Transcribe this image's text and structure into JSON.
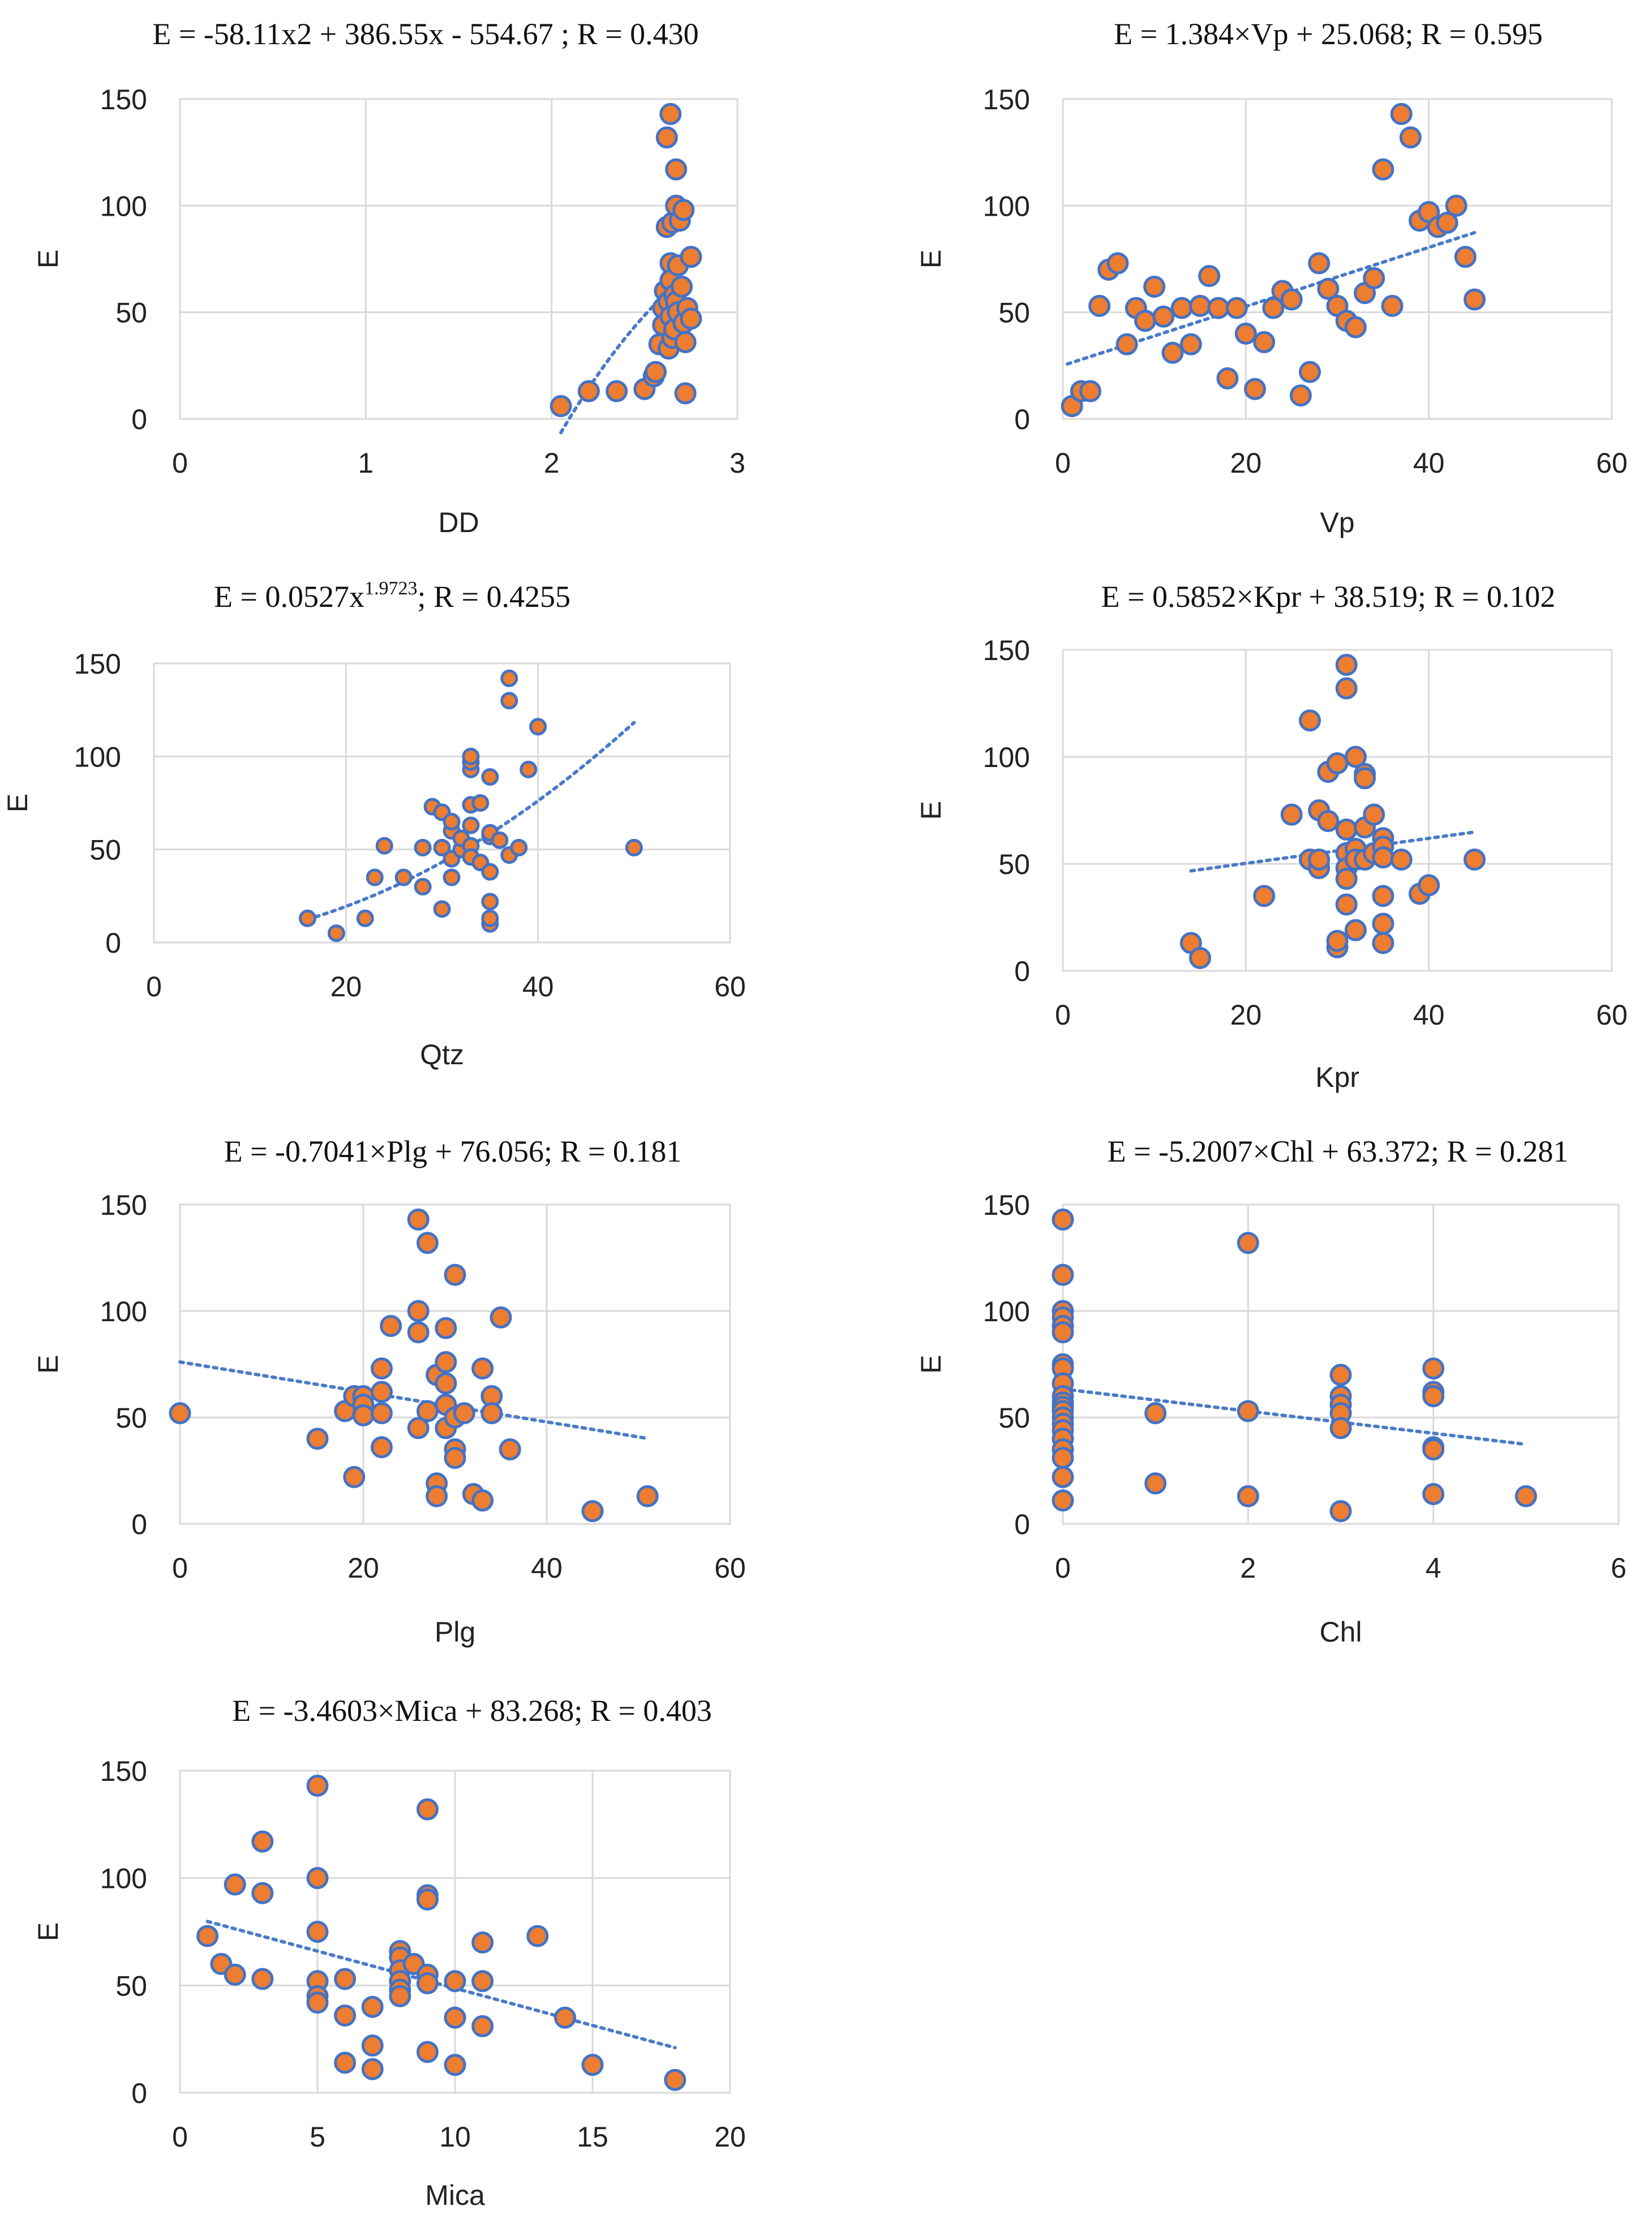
{
  "colors": {
    "marker_fill": "#ed7d31",
    "marker_edge": "#4472c4",
    "trendline": "#4472c4",
    "gridline": "#d9d9d9"
  },
  "chart_data": [
    {
      "type": "scatter",
      "id": "dd",
      "title": "E = -58.11x2 + 386.55x - 554.67 ; R = 0.430",
      "xlabel": "DD",
      "ylabel": "E",
      "xlim": [
        0,
        3
      ],
      "ylim": [
        0,
        150
      ],
      "xticks": [
        "0",
        "1",
        "2",
        "3"
      ],
      "xtick_values": [
        0,
        1,
        2,
        3
      ],
      "yticks": [
        "0",
        "50",
        "100",
        "150"
      ],
      "ytick_values": [
        0,
        50,
        100,
        150
      ],
      "trendline": {
        "kind": "poly2",
        "a": -58.11,
        "b": 386.55,
        "c": -554.67,
        "x_from": 2.05,
        "x_to": 2.72
      },
      "points": [
        [
          2.05,
          6
        ],
        [
          2.2,
          13
        ],
        [
          2.35,
          13
        ],
        [
          2.5,
          14
        ],
        [
          2.55,
          20
        ],
        [
          2.56,
          22
        ],
        [
          2.58,
          35
        ],
        [
          2.6,
          52
        ],
        [
          2.6,
          44
        ],
        [
          2.61,
          60
        ],
        [
          2.62,
          132
        ],
        [
          2.62,
          90
        ],
        [
          2.63,
          55
        ],
        [
          2.63,
          33
        ],
        [
          2.64,
          143
        ],
        [
          2.64,
          73
        ],
        [
          2.64,
          65
        ],
        [
          2.64,
          48
        ],
        [
          2.65,
          38
        ],
        [
          2.65,
          92
        ],
        [
          2.66,
          58
        ],
        [
          2.66,
          42
        ],
        [
          2.67,
          100
        ],
        [
          2.67,
          117
        ],
        [
          2.67,
          55
        ],
        [
          2.68,
          50
        ],
        [
          2.68,
          72
        ],
        [
          2.69,
          93
        ],
        [
          2.7,
          62
        ],
        [
          2.71,
          98
        ],
        [
          2.71,
          45
        ],
        [
          2.72,
          36
        ],
        [
          2.72,
          12
        ],
        [
          2.73,
          52
        ],
        [
          2.75,
          76
        ],
        [
          2.75,
          47
        ]
      ]
    },
    {
      "type": "scatter",
      "id": "vp",
      "title": "E = 1.384×Vp + 25.068; R = 0.595",
      "xlabel": "Vp",
      "ylabel": "E",
      "xlim": [
        0,
        60
      ],
      "ylim": [
        0,
        150
      ],
      "xticks": [
        "0",
        "20",
        "40",
        "60"
      ],
      "xtick_values": [
        0,
        20,
        40,
        60
      ],
      "yticks": [
        "0",
        "50",
        "100",
        "150"
      ],
      "ytick_values": [
        0,
        50,
        100,
        150
      ],
      "trendline": {
        "kind": "linear",
        "slope": 1.384,
        "intercept": 25.068,
        "x_from": 0.5,
        "x_to": 45
      },
      "points": [
        [
          1,
          6
        ],
        [
          2,
          13
        ],
        [
          3,
          13
        ],
        [
          4,
          53
        ],
        [
          5,
          70
        ],
        [
          6,
          73
        ],
        [
          7,
          35
        ],
        [
          8,
          52
        ],
        [
          9,
          46
        ],
        [
          10,
          62
        ],
        [
          11,
          48
        ],
        [
          12,
          31
        ],
        [
          13,
          52
        ],
        [
          14,
          35
        ],
        [
          15,
          53
        ],
        [
          16,
          67
        ],
        [
          17,
          52
        ],
        [
          18,
          19
        ],
        [
          19,
          52
        ],
        [
          20,
          40
        ],
        [
          21,
          14
        ],
        [
          22,
          36
        ],
        [
          23,
          52
        ],
        [
          24,
          60
        ],
        [
          25,
          56
        ],
        [
          26,
          11
        ],
        [
          27,
          22
        ],
        [
          28,
          73
        ],
        [
          29,
          61
        ],
        [
          30,
          53
        ],
        [
          31,
          46
        ],
        [
          32,
          43
        ],
        [
          33,
          59
        ],
        [
          34,
          66
        ],
        [
          35,
          117
        ],
        [
          36,
          53
        ],
        [
          37,
          143
        ],
        [
          38,
          132
        ],
        [
          39,
          93
        ],
        [
          40,
          97
        ],
        [
          41,
          90
        ],
        [
          42,
          92
        ],
        [
          43,
          100
        ],
        [
          44,
          76
        ],
        [
          45,
          56
        ]
      ]
    },
    {
      "type": "scatter",
      "id": "qtz",
      "title_main": "E = 0.0527x",
      "title_sup": "1.9723",
      "title_rest": "; R = 0.4255",
      "xlabel": "Qtz",
      "ylabel": "E",
      "xlim": [
        0,
        60
      ],
      "ylim": [
        0,
        150
      ],
      "xticks": [
        "0",
        "20",
        "40",
        "60"
      ],
      "xtick_values": [
        0,
        20,
        40,
        60
      ],
      "yticks": [
        "0",
        "50",
        "100",
        "150"
      ],
      "ytick_values": [
        0,
        50,
        100,
        150
      ],
      "trendline": {
        "kind": "power",
        "a": 0.0527,
        "b": 1.9723,
        "x_from": 16,
        "x_to": 50
      },
      "points": [
        [
          16,
          13
        ],
        [
          19,
          5
        ],
        [
          22,
          13
        ],
        [
          23,
          35
        ],
        [
          24,
          52
        ],
        [
          26,
          35
        ],
        [
          28,
          30
        ],
        [
          28,
          51
        ],
        [
          29,
          73
        ],
        [
          30,
          18
        ],
        [
          30,
          51
        ],
        [
          30,
          70
        ],
        [
          31,
          35
        ],
        [
          31,
          45
        ],
        [
          31,
          60
        ],
        [
          31,
          65
        ],
        [
          32,
          50
        ],
        [
          32,
          56
        ],
        [
          33,
          52
        ],
        [
          33,
          46
        ],
        [
          33,
          63
        ],
        [
          33,
          74
        ],
        [
          33,
          93
        ],
        [
          33,
          97
        ],
        [
          33,
          100
        ],
        [
          34,
          43
        ],
        [
          34,
          75
        ],
        [
          35,
          10
        ],
        [
          35,
          13
        ],
        [
          35,
          22
        ],
        [
          35,
          38
        ],
        [
          35,
          57
        ],
        [
          35,
          59
        ],
        [
          35,
          89
        ],
        [
          36,
          55
        ],
        [
          37,
          47
        ],
        [
          37,
          130
        ],
        [
          37,
          142
        ],
        [
          38,
          51
        ],
        [
          39,
          93
        ],
        [
          40,
          116
        ],
        [
          50,
          51
        ]
      ]
    },
    {
      "type": "scatter",
      "id": "kpr",
      "title": "E = 0.5852×Kpr + 38.519; R = 0.102",
      "xlabel": "Kpr",
      "ylabel": "E",
      "xlim": [
        0,
        60
      ],
      "ylim": [
        0,
        150
      ],
      "xticks": [
        "0",
        "20",
        "40",
        "60"
      ],
      "xtick_values": [
        0,
        20,
        40,
        60
      ],
      "yticks": [
        "0",
        "50",
        "100",
        "150"
      ],
      "ytick_values": [
        0,
        50,
        100,
        150
      ],
      "trendline": {
        "kind": "linear",
        "slope": 0.5852,
        "intercept": 38.519,
        "x_from": 14,
        "x_to": 45
      },
      "points": [
        [
          14,
          13
        ],
        [
          15,
          6
        ],
        [
          22,
          35
        ],
        [
          25,
          73
        ],
        [
          27,
          117
        ],
        [
          27,
          52
        ],
        [
          28,
          75
        ],
        [
          28,
          48
        ],
        [
          28,
          52
        ],
        [
          29,
          70
        ],
        [
          29,
          93
        ],
        [
          30,
          97
        ],
        [
          30,
          11
        ],
        [
          30,
          14
        ],
        [
          31,
          143
        ],
        [
          31,
          132
        ],
        [
          31,
          66
        ],
        [
          31,
          55
        ],
        [
          31,
          48
        ],
        [
          31,
          43
        ],
        [
          31,
          31
        ],
        [
          32,
          100
        ],
        [
          32,
          57
        ],
        [
          32,
          52
        ],
        [
          32,
          19
        ],
        [
          33,
          92
        ],
        [
          33,
          90
        ],
        [
          33,
          67
        ],
        [
          33,
          52
        ],
        [
          34,
          73
        ],
        [
          34,
          55
        ],
        [
          35,
          62
        ],
        [
          35,
          58
        ],
        [
          35,
          53
        ],
        [
          35,
          35
        ],
        [
          35,
          22
        ],
        [
          35,
          13
        ],
        [
          37,
          52
        ],
        [
          39,
          36
        ],
        [
          40,
          40
        ],
        [
          45,
          52
        ]
      ]
    },
    {
      "type": "scatter",
      "id": "plg",
      "title": "E = -0.7041×Plg + 76.056; R = 0.181",
      "xlabel": "Plg",
      "ylabel": "E",
      "xlim": [
        0,
        60
      ],
      "ylim": [
        0,
        150
      ],
      "xticks": [
        "0",
        "20",
        "40",
        "60"
      ],
      "xtick_values": [
        0,
        20,
        40,
        60
      ],
      "yticks": [
        "0",
        "50",
        "100",
        "150"
      ],
      "ytick_values": [
        0,
        50,
        100,
        150
      ],
      "trendline": {
        "kind": "linear",
        "slope": -0.7041,
        "intercept": 76.056,
        "x_from": 0,
        "x_to": 51
      },
      "points": [
        [
          0,
          52
        ],
        [
          15,
          40
        ],
        [
          18,
          53
        ],
        [
          19,
          60
        ],
        [
          19,
          22
        ],
        [
          20,
          60
        ],
        [
          20,
          56
        ],
        [
          20,
          51
        ],
        [
          22,
          73
        ],
        [
          22,
          62
        ],
        [
          22,
          52
        ],
        [
          22,
          36
        ],
        [
          23,
          93
        ],
        [
          26,
          143
        ],
        [
          26,
          100
        ],
        [
          26,
          90
        ],
        [
          26,
          45
        ],
        [
          27,
          132
        ],
        [
          27,
          53
        ],
        [
          28,
          70
        ],
        [
          28,
          19
        ],
        [
          28,
          13
        ],
        [
          29,
          92
        ],
        [
          29,
          76
        ],
        [
          29,
          66
        ],
        [
          29,
          56
        ],
        [
          29,
          45
        ],
        [
          30,
          117
        ],
        [
          30,
          50
        ],
        [
          30,
          35
        ],
        [
          30,
          31
        ],
        [
          31,
          52
        ],
        [
          32,
          14
        ],
        [
          33,
          73
        ],
        [
          33,
          11
        ],
        [
          34,
          60
        ],
        [
          34,
          52
        ],
        [
          35,
          97
        ],
        [
          36,
          35
        ],
        [
          45,
          6
        ],
        [
          51,
          13
        ]
      ]
    },
    {
      "type": "scatter",
      "id": "chl",
      "title": "E = -5.2007×Chl + 63.372; R = 0.281",
      "xlabel": "Chl",
      "ylabel": "E",
      "xlim": [
        0,
        6
      ],
      "ylim": [
        0,
        150
      ],
      "xticks": [
        "0",
        "2",
        "4",
        "6"
      ],
      "xtick_values": [
        0,
        2,
        4,
        6
      ],
      "yticks": [
        "0",
        "50",
        "100",
        "150"
      ],
      "ytick_values": [
        0,
        50,
        100,
        150
      ],
      "trendline": {
        "kind": "linear",
        "slope": -5.2007,
        "intercept": 63.372,
        "x_from": 0,
        "x_to": 5
      },
      "points": [
        [
          0,
          143
        ],
        [
          0,
          117
        ],
        [
          0,
          100
        ],
        [
          0,
          97
        ],
        [
          0,
          93
        ],
        [
          0,
          90
        ],
        [
          0,
          75
        ],
        [
          0,
          73
        ],
        [
          0,
          66
        ],
        [
          0,
          60
        ],
        [
          0,
          57
        ],
        [
          0,
          55
        ],
        [
          0,
          53
        ],
        [
          0,
          50
        ],
        [
          0,
          47
        ],
        [
          0,
          44
        ],
        [
          0,
          40
        ],
        [
          0,
          35
        ],
        [
          0,
          31
        ],
        [
          0,
          22
        ],
        [
          0,
          11
        ],
        [
          1,
          52
        ],
        [
          1,
          19
        ],
        [
          2,
          132
        ],
        [
          2,
          53
        ],
        [
          2,
          13
        ],
        [
          3,
          70
        ],
        [
          3,
          60
        ],
        [
          3,
          56
        ],
        [
          3,
          52
        ],
        [
          3,
          45
        ],
        [
          3,
          6
        ],
        [
          4,
          73
        ],
        [
          4,
          62
        ],
        [
          4,
          60
        ],
        [
          4,
          36
        ],
        [
          4,
          35
        ],
        [
          4,
          14
        ],
        [
          5,
          13
        ]
      ]
    },
    {
      "type": "scatter",
      "id": "mica",
      "title": "E = -3.4603×Mica + 83.268; R = 0.403",
      "xlabel": "Mica",
      "ylabel": "E",
      "xlim": [
        0,
        20
      ],
      "ylim": [
        0,
        150
      ],
      "xticks": [
        "0",
        "5",
        "10",
        "15",
        "20"
      ],
      "xtick_values": [
        0,
        5,
        10,
        15,
        20
      ],
      "yticks": [
        "0",
        "50",
        "100",
        "150"
      ],
      "ytick_values": [
        0,
        50,
        100,
        150
      ],
      "trendline": {
        "kind": "linear",
        "slope": -3.4603,
        "intercept": 83.268,
        "x_from": 1,
        "x_to": 18
      },
      "points": [
        [
          1,
          73
        ],
        [
          1.5,
          60
        ],
        [
          2,
          97
        ],
        [
          2,
          55
        ],
        [
          3,
          117
        ],
        [
          3,
          93
        ],
        [
          3,
          53
        ],
        [
          5,
          143
        ],
        [
          5,
          100
        ],
        [
          5,
          75
        ],
        [
          5,
          52
        ],
        [
          5,
          45
        ],
        [
          5,
          42
        ],
        [
          6,
          53
        ],
        [
          6,
          36
        ],
        [
          6,
          14
        ],
        [
          7,
          40
        ],
        [
          7,
          22
        ],
        [
          7,
          11
        ],
        [
          8,
          66
        ],
        [
          8,
          63
        ],
        [
          8,
          57
        ],
        [
          8,
          52
        ],
        [
          8,
          48
        ],
        [
          8,
          45
        ],
        [
          8.5,
          60
        ],
        [
          9,
          132
        ],
        [
          9,
          92
        ],
        [
          9,
          90
        ],
        [
          9,
          55
        ],
        [
          9,
          51
        ],
        [
          9,
          19
        ],
        [
          10,
          52
        ],
        [
          10,
          35
        ],
        [
          10,
          13
        ],
        [
          11,
          70
        ],
        [
          11,
          52
        ],
        [
          11,
          31
        ],
        [
          13,
          73
        ],
        [
          14,
          35
        ],
        [
          15,
          13
        ],
        [
          18,
          6
        ]
      ]
    }
  ]
}
